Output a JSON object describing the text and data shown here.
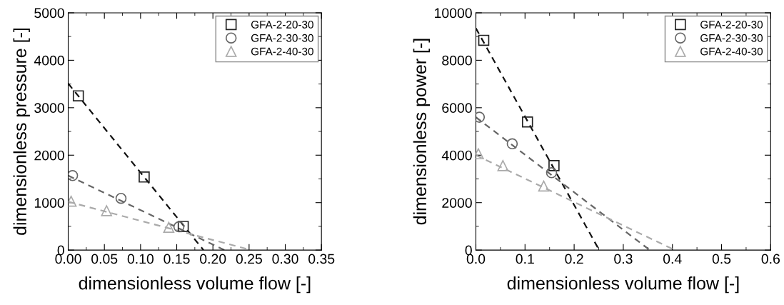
{
  "chart_data": [
    {
      "type": "scatter",
      "xlabel": "dimensionless volume flow [-]",
      "ylabel": "dimensionless pressure [-]",
      "xlim": [
        0,
        0.35
      ],
      "xticks": [
        {
          "value": 0,
          "label": "0.00"
        },
        {
          "value": 0.05,
          "label": "0.05"
        },
        {
          "value": 0.1,
          "label": "0.10"
        },
        {
          "value": 0.15,
          "label": "0.15"
        },
        {
          "value": 0.2,
          "label": "0.20"
        },
        {
          "value": 0.25,
          "label": "0.25"
        },
        {
          "value": 0.3,
          "label": "0.30"
        },
        {
          "value": 0.35,
          "label": "0.35"
        }
      ],
      "ylim": [
        0,
        5000
      ],
      "yticks": [
        0,
        1000,
        2000,
        3000,
        4000,
        5000
      ],
      "grid": false,
      "legend": "top right",
      "series": [
        {
          "name": "GFA-2-20-30",
          "color": "#222222",
          "marker": "square",
          "x": [
            0.014,
            0.105,
            0.159
          ],
          "values": [
            3250,
            1540,
            500
          ]
        },
        {
          "name": "GFA-2-30-30",
          "color": "#666666",
          "marker": "circle",
          "x": [
            0.006,
            0.073,
            0.153
          ],
          "values": [
            1570,
            1090,
            490
          ]
        },
        {
          "name": "GFA-2-40-30",
          "color": "#aaaaaa",
          "marker": "triangle",
          "x": [
            0.004,
            0.053,
            0.139
          ],
          "values": [
            1030,
            830,
            480
          ]
        },
        {
          "type": "line",
          "color": "#111111",
          "line_style": "dashed",
          "x": [
            0,
            0.187
          ],
          "values": [
            3510,
            0
          ]
        },
        {
          "type": "line",
          "color": "#666666",
          "line_style": "dashed",
          "x": [
            0,
            0.216
          ],
          "values": [
            1570,
            0
          ]
        },
        {
          "type": "line",
          "color": "#aaaaaa",
          "line_style": "dashed",
          "x": [
            0,
            0.253
          ],
          "values": [
            1020,
            0
          ]
        }
      ]
    },
    {
      "type": "scatter",
      "xlabel": "dimensionless volume flow [-]",
      "ylabel": "dimensionless power [-]",
      "xlim": [
        0,
        0.6
      ],
      "xticks": [
        {
          "value": 0,
          "label": "0.0"
        },
        {
          "value": 0.1,
          "label": "0.1"
        },
        {
          "value": 0.2,
          "label": "0.2"
        },
        {
          "value": 0.3,
          "label": "0.3"
        },
        {
          "value": 0.4,
          "label": "0.4"
        },
        {
          "value": 0.5,
          "label": "0.5"
        },
        {
          "value": 0.6,
          "label": "0.6"
        }
      ],
      "ylim": [
        0,
        10000
      ],
      "yticks": [
        0,
        2000,
        4000,
        6000,
        8000,
        10000
      ],
      "grid": false,
      "legend": "top right",
      "series": [
        {
          "name": "GFA-2-20-30",
          "color": "#222222",
          "marker": "square",
          "x": [
            0.016,
            0.105,
            0.159
          ],
          "values": [
            8840,
            5400,
            3560
          ]
        },
        {
          "name": "GFA-2-30-30",
          "color": "#666666",
          "marker": "circle",
          "x": [
            0.007,
            0.074,
            0.154
          ],
          "values": [
            5600,
            4480,
            3260
          ]
        },
        {
          "name": "GFA-2-40-30",
          "color": "#aaaaaa",
          "marker": "triangle",
          "x": [
            0.005,
            0.055,
            0.138
          ],
          "values": [
            4060,
            3560,
            2700
          ]
        },
        {
          "type": "line",
          "color": "#111111",
          "line_style": "dashed",
          "x": [
            0,
            0.251
          ],
          "values": [
            9350,
            0
          ]
        },
        {
          "type": "line",
          "color": "#666666",
          "line_style": "dashed",
          "x": [
            0,
            0.354
          ],
          "values": [
            5600,
            0
          ]
        },
        {
          "type": "line",
          "color": "#aaaaaa",
          "line_style": "dashed",
          "x": [
            0,
            0.405
          ],
          "values": [
            4000,
            0
          ]
        }
      ]
    }
  ]
}
